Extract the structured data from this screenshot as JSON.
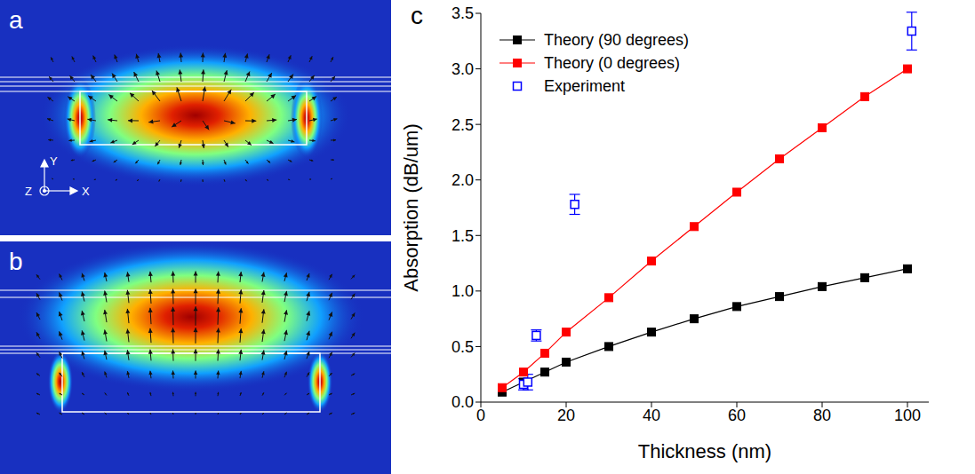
{
  "panels": {
    "a": {
      "label": "a",
      "axis_labels": [
        "Y",
        "Z",
        "X"
      ]
    },
    "b": {
      "label": "b"
    }
  },
  "chart_data": {
    "type": "scatter",
    "panel_label": "c",
    "x_label": "Thickness (nm)",
    "y_label": "Absorption (dB/um)",
    "xlim": [
      0,
      105
    ],
    "xticks": [
      0,
      20,
      40,
      60,
      80,
      100
    ],
    "ylim": [
      0,
      3.5
    ],
    "yticks": [
      {
        "value": 0,
        "label": "0.0"
      },
      {
        "value": 0.5,
        "label": "0.5"
      },
      {
        "value": 1,
        "label": "1.0"
      },
      {
        "value": 1.5,
        "label": "1.5"
      },
      {
        "value": 2,
        "label": "2.0"
      },
      {
        "value": 2.5,
        "label": "2.5"
      },
      {
        "value": 3,
        "label": "3.0"
      },
      {
        "value": 3.5,
        "label": "3.5"
      }
    ],
    "legend": "top-left",
    "series": [
      {
        "name": "Theory (90 degrees)",
        "color": "#000000",
        "marker": "square",
        "line_style": "solid",
        "x": [
          5,
          10,
          15,
          20,
          30,
          40,
          50,
          60,
          70,
          80,
          90,
          100
        ],
        "values": [
          0.09,
          0.18,
          0.27,
          0.36,
          0.5,
          0.63,
          0.75,
          0.86,
          0.95,
          1.04,
          1.12,
          1.2
        ]
      },
      {
        "name": "Theory (0 degrees)",
        "color": "#ff0000",
        "marker": "square",
        "line_style": "solid",
        "x": [
          5,
          10,
          15,
          20,
          30,
          40,
          50,
          60,
          70,
          80,
          90,
          100
        ],
        "values": [
          0.13,
          0.27,
          0.44,
          0.63,
          0.94,
          1.27,
          1.58,
          1.89,
          2.19,
          2.47,
          2.75,
          3.0
        ]
      },
      {
        "name": "Experiment",
        "color": "#0000ff",
        "marker": "hollow-square",
        "line_style": "none",
        "x": [
          10,
          11,
          13,
          22,
          101
        ],
        "values": [
          0.16,
          0.18,
          0.6,
          1.78,
          3.34
        ],
        "errors": [
          0.05,
          0.07,
          0.05,
          0.09,
          0.17
        ]
      }
    ]
  }
}
